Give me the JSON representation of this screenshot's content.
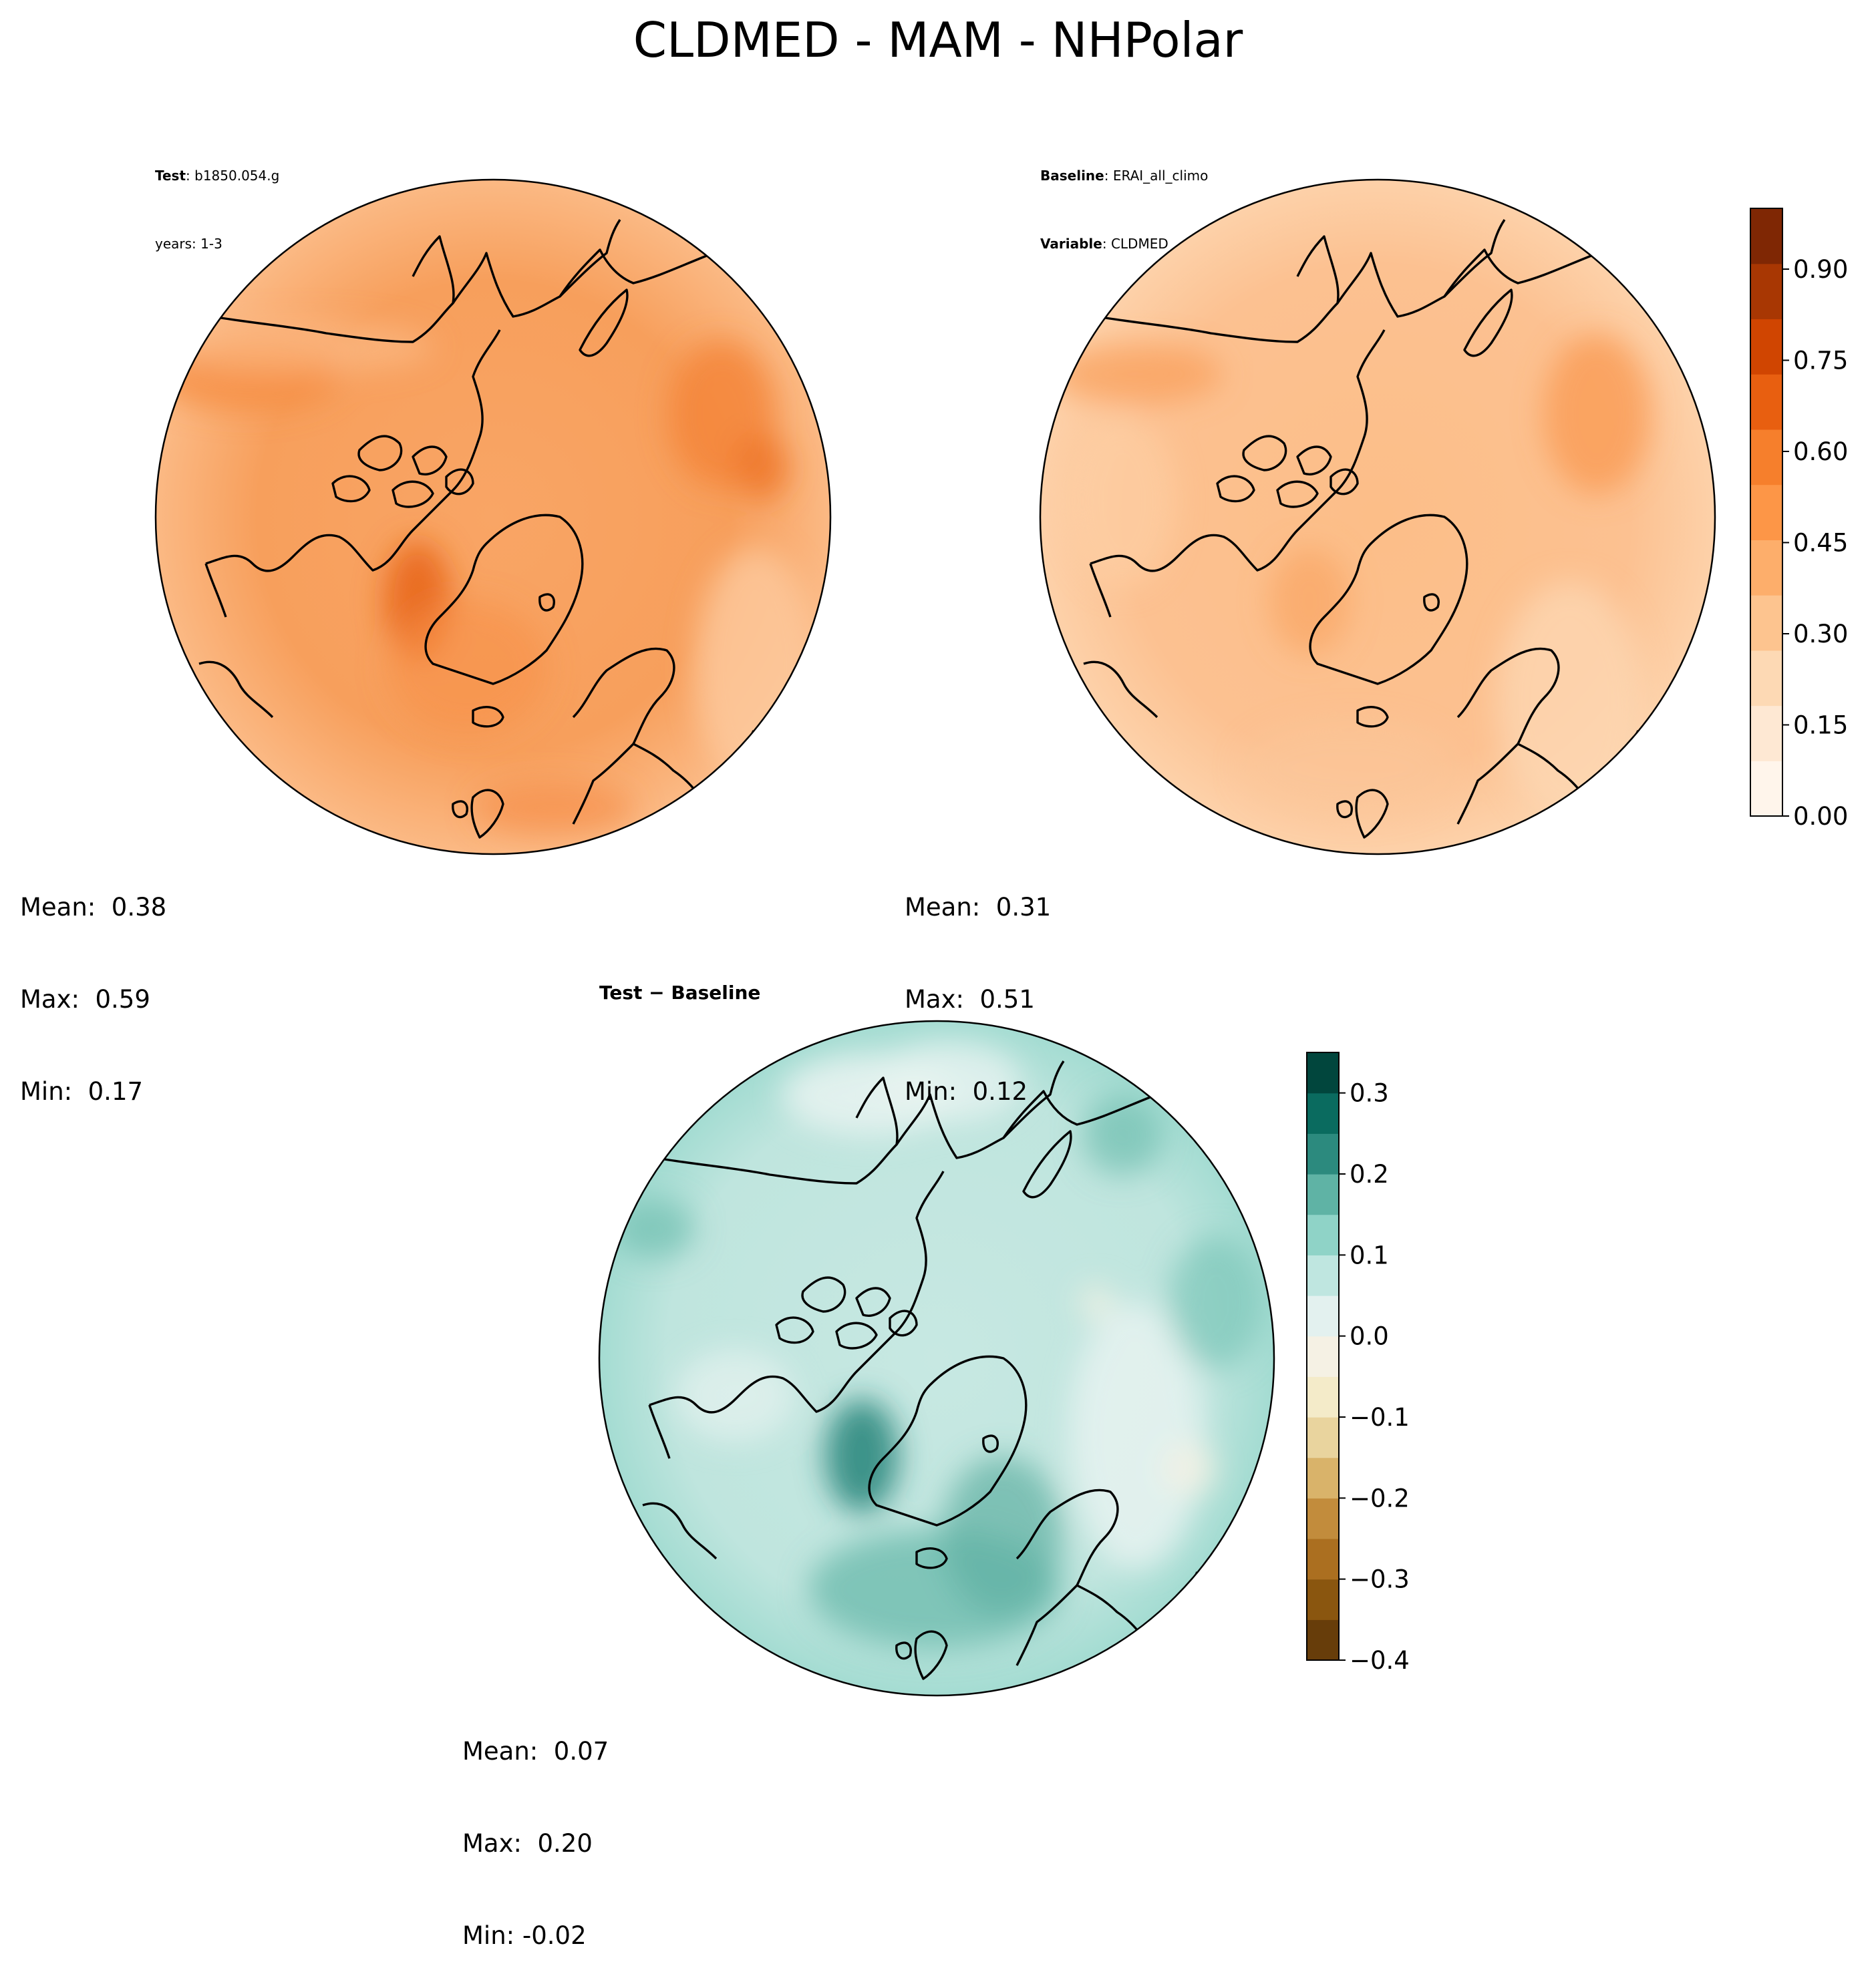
{
  "title": "CLDMED - MAM - NHPolar",
  "panels": {
    "test": {
      "label_key": "Test",
      "label_value": "b1850.054.g",
      "years": "years: 1-3",
      "stats": {
        "mean": "Mean:  0.38",
        "max": "Max:  0.59",
        "min": "Min:  0.17"
      },
      "map_type": "filled-contour polar stereographic",
      "field_level": 0.38,
      "colormap": "Oranges"
    },
    "baseline": {
      "label_key": "Baseline",
      "label_value": "ERAI_all_climo",
      "variable_key": "Variable",
      "variable_value": "CLDMED",
      "stats": {
        "mean": "Mean:  0.31",
        "max": "Max:  0.51",
        "min": "Min:  0.12"
      },
      "map_type": "filled-contour polar stereographic",
      "field_level": 0.31,
      "colormap": "Oranges"
    },
    "diff": {
      "label": "Test − Baseline",
      "stats": {
        "mean": "Mean:  0.07",
        "max": "Max:  0.20",
        "min": "Min: -0.02"
      },
      "map_type": "filled-contour polar stereographic",
      "field_level": 0.07,
      "colormap": "BrBG"
    }
  },
  "colorbars": {
    "main": {
      "range": [
        0.0,
        1.0
      ],
      "ticks": [
        "0.00",
        "0.15",
        "0.30",
        "0.45",
        "0.60",
        "0.75",
        "0.90"
      ],
      "tick_values": [
        0.0,
        0.15,
        0.3,
        0.45,
        0.6,
        0.75,
        0.9
      ],
      "colors": [
        "#fff5eb",
        "#fee8d3",
        "#fdd9b4",
        "#fdc48f",
        "#fdae6b",
        "#fd9647",
        "#f67f2c",
        "#e85f10",
        "#d04501",
        "#a83703",
        "#7f2704"
      ]
    },
    "diff": {
      "range": [
        -0.4,
        0.35
      ],
      "ticks": [
        "0.3",
        "0.2",
        "0.1",
        "0.0",
        "−0.1",
        "−0.2",
        "−0.3",
        "−0.4"
      ],
      "tick_values": [
        0.3,
        0.2,
        0.1,
        0.0,
        -0.1,
        -0.2,
        -0.3,
        -0.4
      ],
      "colors": [
        "#673d0a",
        "#8a560f",
        "#ab6f20",
        "#c28c3c",
        "#d9b36a",
        "#e9d49e",
        "#f4ebc9",
        "#f5f1e4",
        "#e3f1ef",
        "#bfe6e0",
        "#8fd3c7",
        "#5fb3a5",
        "#2c8a7e",
        "#0a6b5f",
        "#01463d"
      ]
    }
  }
}
